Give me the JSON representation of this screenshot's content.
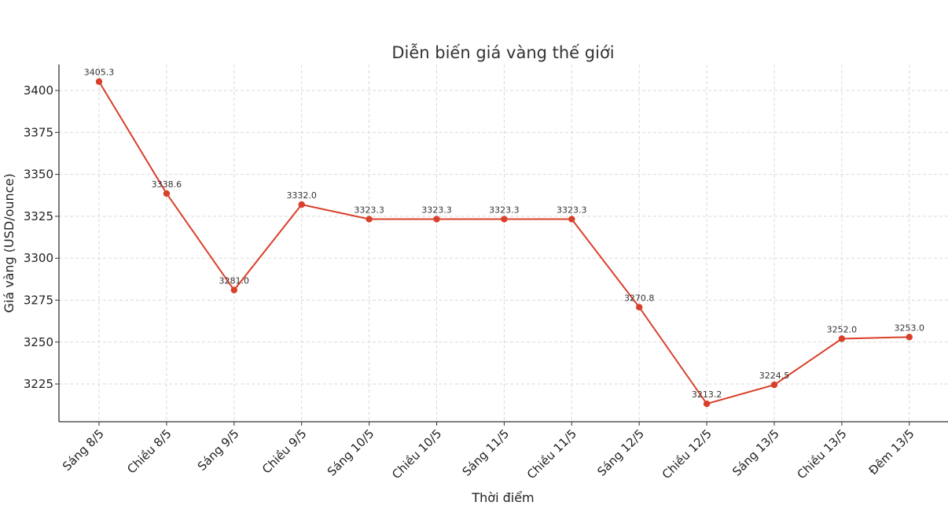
{
  "chart_data": {
    "type": "line",
    "title": "Diễn biến giá vàng thế giới",
    "xlabel": "Thời điểm",
    "ylabel": "Giá vàng (USD/ounce)",
    "categories": [
      "Sáng 8/5",
      "Chiều 8/5",
      "Sáng 9/5",
      "Chiều 9/5",
      "Sáng 10/5",
      "Chiều 10/5",
      "Sáng 11/5",
      "Chiều 11/5",
      "Sáng 12/5",
      "Chiều 12/5",
      "Sáng 13/5",
      "Chiều 13/5",
      "Đêm 13/5"
    ],
    "values": [
      3405.3,
      3338.6,
      3281.0,
      3332.0,
      3323.3,
      3323.3,
      3323.3,
      3323.3,
      3270.8,
      3213.2,
      3224.5,
      3252.0,
      3253.0
    ],
    "data_labels": [
      "3405.3",
      "3338.6",
      "3281.0",
      "3332.0",
      "3323.3",
      "3323.3",
      "3323.3",
      "3323.3",
      "3270.8",
      "3213.2",
      "3224.5",
      "3252.0",
      "3253.0"
    ],
    "yticks": [
      3225,
      3250,
      3275,
      3300,
      3325,
      3350,
      3375,
      3400
    ],
    "ylim": [
      3202.5,
      3415.5
    ],
    "grid": true,
    "line_color": "#d9402b"
  }
}
